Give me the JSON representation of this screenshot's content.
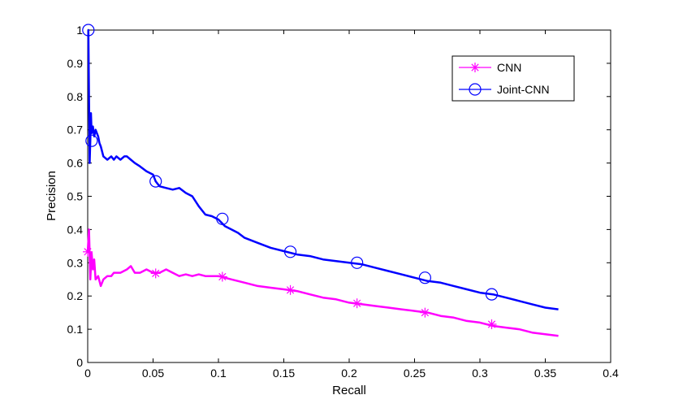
{
  "chart_data": {
    "type": "line",
    "title": "",
    "xlabel": "Recall",
    "ylabel": "Precision",
    "xlim": [
      0,
      0.4
    ],
    "ylim": [
      0,
      1
    ],
    "xticks": [
      "0",
      "0.05",
      "0.1",
      "0.15",
      "0.2",
      "0.25",
      "0.3",
      "0.35",
      "0.4"
    ],
    "xtick_values": [
      0,
      0.05,
      0.1,
      0.15,
      0.2,
      0.25,
      0.3,
      0.35,
      0.4
    ],
    "yticks": [
      "0",
      "0.1",
      "0.2",
      "0.3",
      "0.4",
      "0.5",
      "0.6",
      "0.7",
      "0.8",
      "0.9",
      "1"
    ],
    "ytick_values": [
      0,
      0.1,
      0.2,
      0.3,
      0.4,
      0.5,
      0.6,
      0.7,
      0.8,
      0.9,
      1
    ],
    "grid": false,
    "legend_position": "top-right",
    "series": [
      {
        "name": "CNN",
        "color": "#ff00ff",
        "marker": "asterisk",
        "x": [
          0.0,
          0.001,
          0.002,
          0.003,
          0.004,
          0.005,
          0.006,
          0.008,
          0.01,
          0.012,
          0.015,
          0.018,
          0.02,
          0.025,
          0.03,
          0.033,
          0.036,
          0.04,
          0.045,
          0.05,
          0.055,
          0.06,
          0.065,
          0.07,
          0.075,
          0.08,
          0.085,
          0.09,
          0.095,
          0.1,
          0.105,
          0.11,
          0.12,
          0.13,
          0.14,
          0.15,
          0.16,
          0.17,
          0.18,
          0.19,
          0.2,
          0.21,
          0.22,
          0.23,
          0.24,
          0.25,
          0.26,
          0.27,
          0.28,
          0.29,
          0.3,
          0.31,
          0.32,
          0.33,
          0.34,
          0.35,
          0.36
        ],
        "y": [
          0.333,
          0.4,
          0.25,
          0.33,
          0.28,
          0.31,
          0.25,
          0.26,
          0.23,
          0.25,
          0.26,
          0.26,
          0.27,
          0.27,
          0.28,
          0.29,
          0.27,
          0.27,
          0.28,
          0.27,
          0.27,
          0.28,
          0.27,
          0.26,
          0.265,
          0.26,
          0.265,
          0.26,
          0.26,
          0.26,
          0.255,
          0.25,
          0.24,
          0.23,
          0.225,
          0.22,
          0.215,
          0.205,
          0.195,
          0.19,
          0.18,
          0.175,
          0.17,
          0.165,
          0.16,
          0.155,
          0.15,
          0.14,
          0.135,
          0.125,
          0.12,
          0.11,
          0.105,
          0.1,
          0.09,
          0.085,
          0.08
        ]
      },
      {
        "name": "Joint-CNN",
        "color": "#0000ff",
        "marker": "circle",
        "x": [
          0.0,
          0.0005,
          0.001,
          0.0015,
          0.002,
          0.0025,
          0.003,
          0.004,
          0.005,
          0.006,
          0.007,
          0.008,
          0.009,
          0.01,
          0.012,
          0.015,
          0.018,
          0.02,
          0.022,
          0.025,
          0.028,
          0.03,
          0.033,
          0.036,
          0.04,
          0.045,
          0.05,
          0.052,
          0.055,
          0.06,
          0.065,
          0.07,
          0.075,
          0.08,
          0.085,
          0.09,
          0.095,
          0.1,
          0.105,
          0.11,
          0.115,
          0.12,
          0.13,
          0.14,
          0.15,
          0.16,
          0.17,
          0.18,
          0.19,
          0.2,
          0.21,
          0.22,
          0.23,
          0.24,
          0.25,
          0.26,
          0.27,
          0.28,
          0.29,
          0.3,
          0.31,
          0.32,
          0.33,
          0.34,
          0.35,
          0.36
        ],
        "y": [
          1.0,
          1.0,
          0.8,
          0.6,
          0.667,
          0.75,
          0.69,
          0.71,
          0.68,
          0.7,
          0.69,
          0.68,
          0.66,
          0.65,
          0.62,
          0.61,
          0.62,
          0.61,
          0.62,
          0.61,
          0.62,
          0.62,
          0.61,
          0.6,
          0.59,
          0.575,
          0.565,
          0.545,
          0.53,
          0.525,
          0.52,
          0.525,
          0.51,
          0.5,
          0.47,
          0.445,
          0.44,
          0.43,
          0.41,
          0.4,
          0.39,
          0.375,
          0.36,
          0.345,
          0.335,
          0.325,
          0.32,
          0.31,
          0.305,
          0.3,
          0.295,
          0.285,
          0.275,
          0.265,
          0.255,
          0.245,
          0.24,
          0.23,
          0.22,
          0.21,
          0.205,
          0.195,
          0.185,
          0.175,
          0.165,
          0.16
        ]
      }
    ],
    "marker_points": [
      {
        "series": "CNN",
        "x": [
          0.0,
          0.052,
          0.103,
          0.155,
          0.206,
          0.258,
          0.309
        ],
        "y": [
          0.333,
          0.268,
          0.258,
          0.218,
          0.178,
          0.15,
          0.115
        ]
      },
      {
        "series": "Joint-CNN",
        "x": [
          0.0005,
          0.003,
          0.052,
          0.103,
          0.155,
          0.206,
          0.258,
          0.309
        ],
        "y": [
          1.0,
          0.667,
          0.545,
          0.432,
          0.333,
          0.3,
          0.255,
          0.205
        ]
      }
    ]
  }
}
